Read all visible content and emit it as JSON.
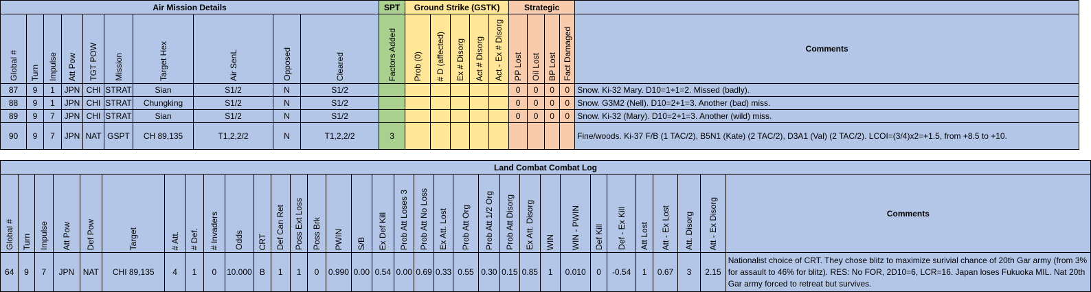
{
  "air": {
    "groups": {
      "details": "Air Mission Details",
      "spt": "SPT",
      "gstk": "Ground Strike (GSTK)",
      "strategic": "Strategic"
    },
    "headers": [
      "Global #",
      "Turn",
      "Impulse",
      "Att Pow",
      "TGT POW",
      "Mission",
      "Target Hex",
      "Air SenL",
      "Opposed",
      "Cleared",
      "Factors Added",
      "Prob (0)",
      "# D (affected)",
      "Ex # Disorg",
      "Act # Disorg",
      "Act - Ex # Disorg",
      "PP Lost",
      "Oil Lost",
      "BP Lost",
      "Fact Damaged"
    ],
    "comments_header": "Comments",
    "rows": [
      [
        "87",
        "9",
        "1",
        "JPN",
        "CHI",
        "STRAT",
        "Sian",
        "S1/2",
        "N",
        "S1/2",
        "",
        "",
        "",
        "",
        "",
        "",
        "0",
        "0",
        "0",
        "0",
        "Snow.  Ki-32 Mary.  D10=1+1=2.  Missed (badly)."
      ],
      [
        "88",
        "9",
        "1",
        "JPN",
        "CHI",
        "STRAT",
        "Chungking",
        "S1/2",
        "N",
        "S1/2",
        "",
        "",
        "",
        "",
        "",
        "",
        "0",
        "0",
        "0",
        "0",
        "Snow.  G3M2 (Nell).  D10=2+1=3.  Another (bad) miss."
      ],
      [
        "89",
        "9",
        "7",
        "JPN",
        "CHI",
        "STRAT",
        "Sian",
        "S1/2",
        "N",
        "S1/2",
        "",
        "",
        "",
        "",
        "",
        "",
        "0",
        "0",
        "0",
        "0",
        "Snow.  Ki-32 (Mary).  D10=2+1=3.  Another (wild) miss."
      ],
      [
        "90",
        "9",
        "7",
        "JPN",
        "NAT",
        "GSPT",
        "CH 89,135",
        "T1,2,2/2",
        "N",
        "T1,2,2/2",
        "3",
        "",
        "",
        "",
        "",
        "",
        "",
        "",
        "",
        "",
        "Fine/woods.  Ki-37 F/B (1 TAC/2), B5N1 (Kate) (2 TAC/2), D3A1 (Val) (2 TAC/2).  LCOI=(3/4)x2=+1.5, from +8.5 to +10."
      ]
    ]
  },
  "land": {
    "title": "Land Combat Combat Log",
    "headers": [
      "Global #",
      "Turn",
      "Impulse",
      "Att Pow",
      "Def Pow",
      "Target",
      "# Att.",
      "# Def.",
      "# Invaders",
      "Odds",
      "CRT",
      "Def Can Ret",
      "Poss Ext Loss",
      "Poss Brk",
      "PWIN",
      "S/B",
      "Ex Def Kill",
      "Prob Att Loses 3",
      "Prob Att No Loss",
      "Ex Att. Lost",
      "Prob Att Org",
      "Prob Att 1/2 Org",
      "Prob Att Disorg",
      "Ex Att. Disorg",
      "WIN",
      "WIN - PWIN",
      "Def Kill",
      "Def - Ex Kill",
      "Att Lost",
      "Att - Ex Lost",
      "Att. Disorg",
      "Att - Ex Disorg"
    ],
    "comments_header": "Comments",
    "rows": [
      [
        "64",
        "9",
        "7",
        "JPN",
        "NAT",
        "CHI 89,135",
        "4",
        "1",
        "0",
        "10.000",
        "B",
        "1",
        "1",
        "0",
        "0.990",
        "0.00",
        "0.54",
        "0.00",
        "0.69",
        "0.33",
        "0.55",
        "0.30",
        "0.15",
        "0.85",
        "1",
        "0.010",
        "0",
        "-0.54",
        "1",
        "0.67",
        "3",
        "2.15",
        "Nationalist choice of CRT.  They chose blitz to maximize surivial chance of 20th Gar army (from 3% for assault to 46% for blitz).  RES:  No FOR, 2D10=6, LCR=16.  Japan loses Fukuoka MIL.  Nat 20th Gar army forced to retreat but survives."
      ]
    ]
  }
}
